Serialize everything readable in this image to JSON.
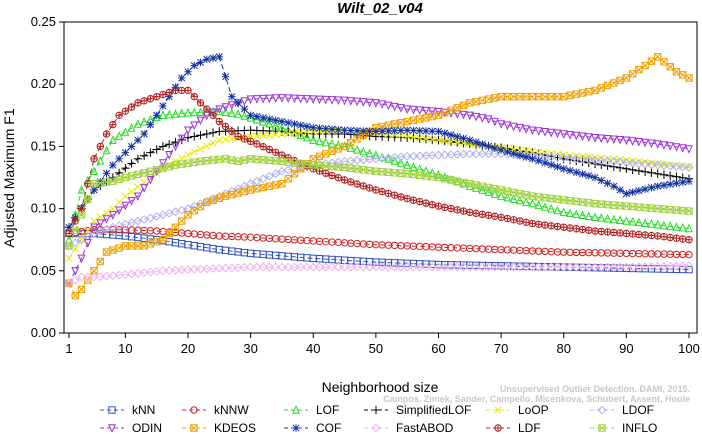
{
  "chart_data": {
    "type": "line",
    "title": "Wilt_02_v04",
    "xlabel": "Neighborhood size",
    "ylabel": "Adjusted Maximum F1",
    "xlim": [
      1,
      100
    ],
    "ylim": [
      0.0,
      0.25
    ],
    "x_ticks": [
      1,
      10,
      20,
      30,
      40,
      50,
      60,
      70,
      80,
      90,
      100
    ],
    "y_ticks": [
      "0.00",
      "0.05",
      "0.10",
      "0.15",
      "0.20",
      "0.25"
    ],
    "grid": false,
    "legend_position": "bottom",
    "series": [
      {
        "name": "kNN",
        "color": "#2f4fbf",
        "marker": "square",
        "stroke": "dash",
        "points": [
          [
            1,
            0.08
          ],
          [
            5,
            0.08
          ],
          [
            10,
            0.078
          ],
          [
            15,
            0.075
          ],
          [
            20,
            0.071
          ],
          [
            25,
            0.067
          ],
          [
            30,
            0.064
          ],
          [
            35,
            0.062
          ],
          [
            40,
            0.06
          ],
          [
            50,
            0.057
          ],
          [
            60,
            0.055
          ],
          [
            70,
            0.054
          ],
          [
            80,
            0.053
          ],
          [
            90,
            0.052
          ],
          [
            100,
            0.051
          ]
        ]
      },
      {
        "name": "kNNW",
        "color": "#d02020",
        "marker": "circle",
        "stroke": "dash",
        "points": [
          [
            1,
            0.08
          ],
          [
            5,
            0.083
          ],
          [
            10,
            0.083
          ],
          [
            15,
            0.082
          ],
          [
            20,
            0.08
          ],
          [
            25,
            0.078
          ],
          [
            30,
            0.077
          ],
          [
            40,
            0.074
          ],
          [
            50,
            0.071
          ],
          [
            60,
            0.069
          ],
          [
            70,
            0.067
          ],
          [
            80,
            0.065
          ],
          [
            90,
            0.064
          ],
          [
            100,
            0.063
          ]
        ]
      },
      {
        "name": "LOF",
        "color": "#22dd22",
        "marker": "triangle",
        "stroke": "dash",
        "points": [
          [
            1,
            0.075
          ],
          [
            3,
            0.115
          ],
          [
            5,
            0.13
          ],
          [
            8,
            0.155
          ],
          [
            12,
            0.168
          ],
          [
            16,
            0.175
          ],
          [
            20,
            0.177
          ],
          [
            25,
            0.178
          ],
          [
            28,
            0.176
          ],
          [
            35,
            0.165
          ],
          [
            40,
            0.155
          ],
          [
            45,
            0.15
          ],
          [
            50,
            0.143
          ],
          [
            55,
            0.135
          ],
          [
            60,
            0.127
          ],
          [
            65,
            0.118
          ],
          [
            70,
            0.11
          ],
          [
            75,
            0.104
          ],
          [
            80,
            0.097
          ],
          [
            85,
            0.093
          ],
          [
            90,
            0.09
          ],
          [
            95,
            0.087
          ],
          [
            100,
            0.084
          ]
        ]
      },
      {
        "name": "SimplifiedLOF",
        "color": "#000000",
        "marker": "plus",
        "stroke": "dash",
        "points": [
          [
            1,
            0.085
          ],
          [
            3,
            0.1
          ],
          [
            5,
            0.115
          ],
          [
            8,
            0.125
          ],
          [
            12,
            0.14
          ],
          [
            16,
            0.15
          ],
          [
            20,
            0.157
          ],
          [
            25,
            0.162
          ],
          [
            30,
            0.163
          ],
          [
            35,
            0.162
          ],
          [
            40,
            0.16
          ],
          [
            45,
            0.16
          ],
          [
            50,
            0.158
          ],
          [
            55,
            0.157
          ],
          [
            60,
            0.155
          ],
          [
            65,
            0.152
          ],
          [
            70,
            0.149
          ],
          [
            75,
            0.145
          ],
          [
            80,
            0.14
          ],
          [
            85,
            0.136
          ],
          [
            90,
            0.132
          ],
          [
            95,
            0.128
          ],
          [
            100,
            0.124
          ]
        ]
      },
      {
        "name": "LoOP",
        "color": "#eaea00",
        "marker": "x",
        "stroke": "dash",
        "points": [
          [
            1,
            0.06
          ],
          [
            3,
            0.075
          ],
          [
            5,
            0.09
          ],
          [
            8,
            0.1
          ],
          [
            10,
            0.11
          ],
          [
            14,
            0.125
          ],
          [
            18,
            0.138
          ],
          [
            22,
            0.148
          ],
          [
            25,
            0.155
          ],
          [
            30,
            0.158
          ],
          [
            35,
            0.16
          ],
          [
            40,
            0.162
          ],
          [
            45,
            0.163
          ],
          [
            50,
            0.161
          ],
          [
            55,
            0.158
          ],
          [
            60,
            0.155
          ],
          [
            65,
            0.152
          ],
          [
            70,
            0.149
          ],
          [
            75,
            0.146
          ],
          [
            80,
            0.143
          ],
          [
            85,
            0.141
          ],
          [
            90,
            0.139
          ],
          [
            95,
            0.136
          ],
          [
            100,
            0.134
          ]
        ]
      },
      {
        "name": "LDOF",
        "color": "#b0b0f0",
        "marker": "diamond",
        "stroke": "dash",
        "points": [
          [
            1,
            0.07
          ],
          [
            3,
            0.075
          ],
          [
            5,
            0.08
          ],
          [
            8,
            0.085
          ],
          [
            12,
            0.09
          ],
          [
            16,
            0.095
          ],
          [
            20,
            0.1
          ],
          [
            25,
            0.11
          ],
          [
            30,
            0.12
          ],
          [
            35,
            0.13
          ],
          [
            40,
            0.135
          ],
          [
            45,
            0.138
          ],
          [
            50,
            0.14
          ],
          [
            55,
            0.142
          ],
          [
            60,
            0.143
          ],
          [
            65,
            0.144
          ],
          [
            70,
            0.144
          ],
          [
            75,
            0.142
          ],
          [
            80,
            0.141
          ],
          [
            85,
            0.139
          ],
          [
            90,
            0.137
          ],
          [
            95,
            0.135
          ],
          [
            100,
            0.133
          ]
        ]
      },
      {
        "name": "ODIN",
        "color": "#9b30d9",
        "marker": "triangle-down",
        "stroke": "dash",
        "points": [
          [
            1,
            0.04
          ],
          [
            3,
            0.06
          ],
          [
            5,
            0.085
          ],
          [
            8,
            0.095
          ],
          [
            12,
            0.11
          ],
          [
            15,
            0.13
          ],
          [
            18,
            0.15
          ],
          [
            20,
            0.163
          ],
          [
            23,
            0.175
          ],
          [
            25,
            0.18
          ],
          [
            28,
            0.185
          ],
          [
            30,
            0.188
          ],
          [
            35,
            0.189
          ],
          [
            40,
            0.188
          ],
          [
            45,
            0.187
          ],
          [
            50,
            0.185
          ],
          [
            55,
            0.18
          ],
          [
            60,
            0.178
          ],
          [
            65,
            0.175
          ],
          [
            68,
            0.172
          ],
          [
            70,
            0.168
          ],
          [
            75,
            0.163
          ],
          [
            80,
            0.16
          ],
          [
            85,
            0.157
          ],
          [
            90,
            0.155
          ],
          [
            95,
            0.152
          ],
          [
            100,
            0.148
          ]
        ]
      },
      {
        "name": "KDEOS",
        "color": "#f0a000",
        "marker": "square-x",
        "stroke": "dash",
        "points": [
          [
            1,
            0.04
          ],
          [
            2,
            0.03
          ],
          [
            3,
            0.035
          ],
          [
            5,
            0.05
          ],
          [
            7,
            0.065
          ],
          [
            10,
            0.07
          ],
          [
            13,
            0.07
          ],
          [
            16,
            0.075
          ],
          [
            18,
            0.085
          ],
          [
            20,
            0.095
          ],
          [
            23,
            0.105
          ],
          [
            26,
            0.11
          ],
          [
            30,
            0.115
          ],
          [
            35,
            0.12
          ],
          [
            40,
            0.14
          ],
          [
            45,
            0.15
          ],
          [
            50,
            0.165
          ],
          [
            55,
            0.17
          ],
          [
            60,
            0.175
          ],
          [
            65,
            0.185
          ],
          [
            70,
            0.19
          ],
          [
            75,
            0.19
          ],
          [
            80,
            0.19
          ],
          [
            85,
            0.195
          ],
          [
            90,
            0.205
          ],
          [
            93,
            0.215
          ],
          [
            95,
            0.222
          ],
          [
            98,
            0.21
          ],
          [
            100,
            0.205
          ]
        ]
      },
      {
        "name": "COF",
        "color": "#1030a0",
        "marker": "star",
        "stroke": "dash",
        "points": [
          [
            1,
            0.085
          ],
          [
            3,
            0.1
          ],
          [
            5,
            0.115
          ],
          [
            8,
            0.135
          ],
          [
            10,
            0.145
          ],
          [
            13,
            0.16
          ],
          [
            15,
            0.175
          ],
          [
            17,
            0.19
          ],
          [
            19,
            0.205
          ],
          [
            21,
            0.215
          ],
          [
            23,
            0.22
          ],
          [
            25,
            0.222
          ],
          [
            27,
            0.19
          ],
          [
            30,
            0.175
          ],
          [
            35,
            0.17
          ],
          [
            40,
            0.165
          ],
          [
            45,
            0.163
          ],
          [
            50,
            0.162
          ],
          [
            55,
            0.163
          ],
          [
            60,
            0.162
          ],
          [
            65,
            0.155
          ],
          [
            70,
            0.147
          ],
          [
            75,
            0.14
          ],
          [
            80,
            0.132
          ],
          [
            85,
            0.125
          ],
          [
            88,
            0.118
          ],
          [
            90,
            0.112
          ],
          [
            95,
            0.118
          ],
          [
            100,
            0.122
          ]
        ]
      },
      {
        "name": "FastABOD",
        "color": "#f0b0f0",
        "marker": "diamond",
        "stroke": "dash",
        "points": [
          [
            1,
            0.04
          ],
          [
            3,
            0.045
          ],
          [
            5,
            0.045
          ],
          [
            8,
            0.046
          ],
          [
            12,
            0.048
          ],
          [
            16,
            0.05
          ],
          [
            20,
            0.051
          ],
          [
            25,
            0.052
          ],
          [
            30,
            0.053
          ],
          [
            40,
            0.053
          ],
          [
            50,
            0.053
          ],
          [
            60,
            0.053
          ],
          [
            70,
            0.053
          ],
          [
            80,
            0.053
          ],
          [
            90,
            0.053
          ],
          [
            100,
            0.054
          ]
        ]
      },
      {
        "name": "LDF",
        "color": "#b02020",
        "marker": "circle-plus",
        "stroke": "dash",
        "points": [
          [
            1,
            0.08
          ],
          [
            3,
            0.1
          ],
          [
            5,
            0.14
          ],
          [
            7,
            0.16
          ],
          [
            9,
            0.175
          ],
          [
            12,
            0.185
          ],
          [
            15,
            0.19
          ],
          [
            18,
            0.195
          ],
          [
            20,
            0.195
          ],
          [
            22,
            0.185
          ],
          [
            25,
            0.17
          ],
          [
            28,
            0.158
          ],
          [
            31,
            0.152
          ],
          [
            35,
            0.143
          ],
          [
            40,
            0.132
          ],
          [
            45,
            0.123
          ],
          [
            50,
            0.115
          ],
          [
            55,
            0.108
          ],
          [
            60,
            0.102
          ],
          [
            65,
            0.097
          ],
          [
            70,
            0.093
          ],
          [
            75,
            0.088
          ],
          [
            80,
            0.085
          ],
          [
            85,
            0.082
          ],
          [
            90,
            0.08
          ],
          [
            95,
            0.078
          ],
          [
            100,
            0.075
          ]
        ]
      },
      {
        "name": "INFLO",
        "color": "#a0d040",
        "marker": "square-star",
        "stroke": "dash",
        "points": [
          [
            1,
            0.07
          ],
          [
            3,
            0.095
          ],
          [
            5,
            0.12
          ],
          [
            8,
            0.122
          ],
          [
            10,
            0.125
          ],
          [
            14,
            0.13
          ],
          [
            18,
            0.135
          ],
          [
            22,
            0.138
          ],
          [
            26,
            0.14
          ],
          [
            28,
            0.138
          ],
          [
            30,
            0.14
          ],
          [
            35,
            0.138
          ],
          [
            40,
            0.135
          ],
          [
            45,
            0.133
          ],
          [
            50,
            0.13
          ],
          [
            55,
            0.128
          ],
          [
            60,
            0.125
          ],
          [
            65,
            0.12
          ],
          [
            70,
            0.115
          ],
          [
            75,
            0.11
          ],
          [
            80,
            0.107
          ],
          [
            85,
            0.104
          ],
          [
            90,
            0.102
          ],
          [
            95,
            0.1
          ],
          [
            100,
            0.098
          ]
        ]
      }
    ]
  },
  "watermark": {
    "line1": "Unsupervised Outlier Detection. DAMI, 2015.",
    "line2": "Campos, Zimek, Sander, Campello, Micenkova, Schubert, Assent, Houle"
  }
}
